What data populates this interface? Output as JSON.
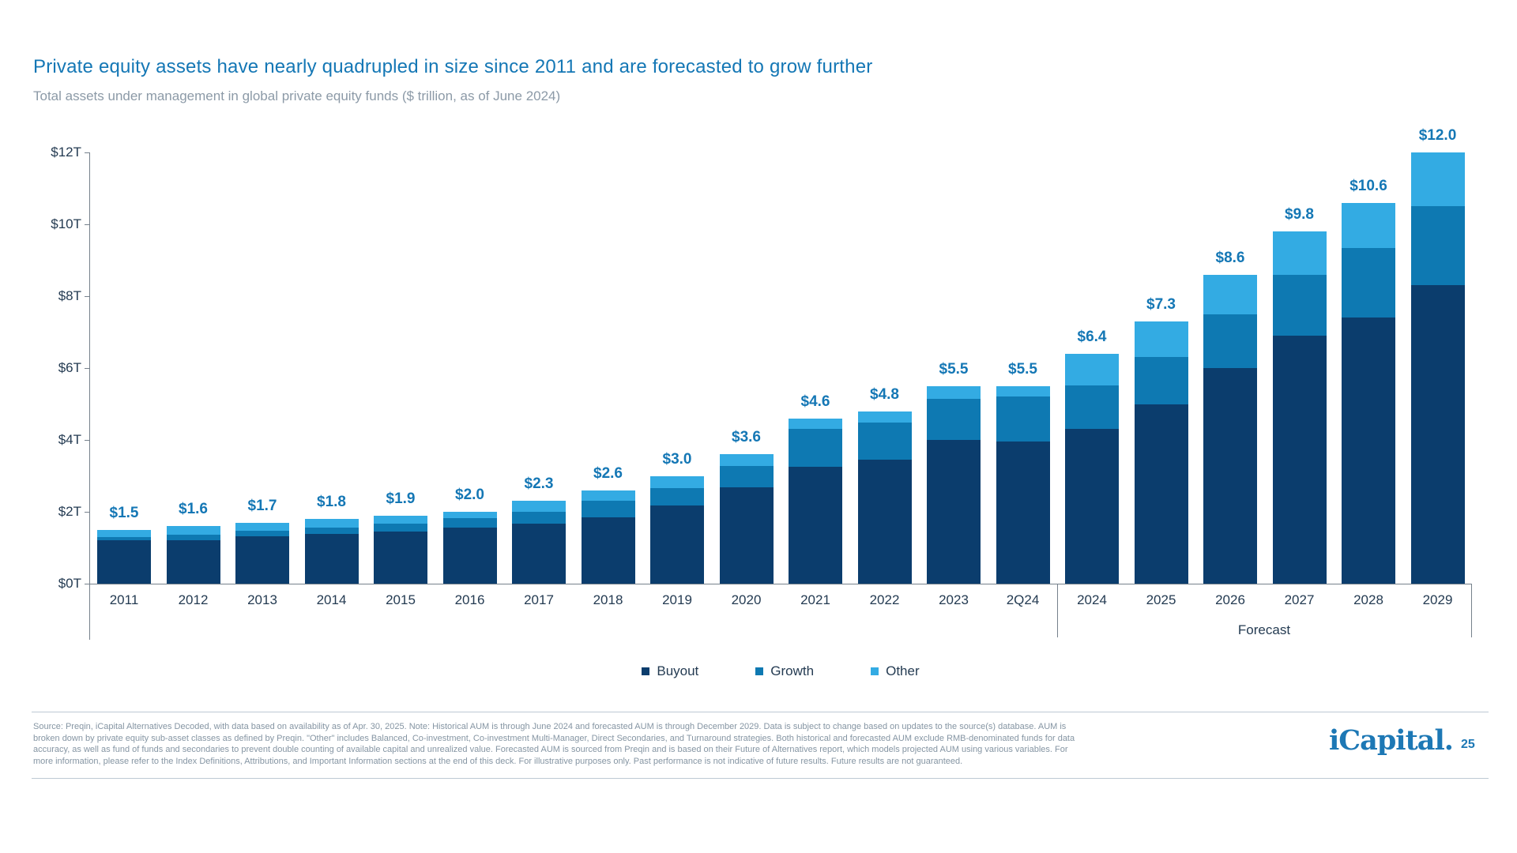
{
  "slide": {
    "title": "Private equity assets have nearly quadrupled in size since 2011 and are forecasted to grow further",
    "subtitle": "Total assets under management in global private equity funds ($ trillion, as of June 2024)",
    "footer": "Source: Preqin, iCapital Alternatives Decoded, with data based on availability as of Apr. 30, 2025. Note: Historical AUM is through June 2024 and forecasted AUM is through December 2029. Data is subject to change based on updates to the source(s) database. AUM is broken down by private equity sub-asset classes as defined by Preqin. \"Other\" includes Balanced, Co-investment, Co-investment Multi-Manager, Direct Secondaries, and Turnaround strategies. Both historical and forecasted AUM exclude RMB-denominated funds for data accuracy, as well as fund of funds and secondaries to prevent double counting of available capital and unrealized value. Forecasted AUM is sourced from Preqin and is based on their Future of Alternatives report, which models projected AUM using various variables. For more information, please refer to the Index Definitions, Attributions, and Important Information sections at the end of this deck. For illustrative purposes only. Past performance is not indicative of future results. Future results are not guaranteed.",
    "logo_text": "iCapital.",
    "page_number": "25"
  },
  "colors": {
    "accent_blue": "#1477b5",
    "navy_text": "#243b52",
    "subtitle_gray": "#8c9aa7",
    "axis_gray": "#76818c",
    "buyout": "#0b3d6d",
    "growth": "#0e79b2",
    "other": "#33abe3"
  },
  "chart_data": {
    "type": "bar",
    "stacked": true,
    "title": "Total assets under management in global private equity funds ($ trillion, as of June 2024)",
    "categories": [
      "2011",
      "2012",
      "2013",
      "2014",
      "2015",
      "2016",
      "2017",
      "2018",
      "2019",
      "2020",
      "2021",
      "2022",
      "2023",
      "2Q24",
      "2024",
      "2025",
      "2026",
      "2027",
      "2028",
      "2029"
    ],
    "series": [
      {
        "name": "Buyout",
        "color": "#0b3d6d",
        "values": [
          1.21,
          1.21,
          1.32,
          1.38,
          1.45,
          1.56,
          1.67,
          1.85,
          2.18,
          2.68,
          3.25,
          3.45,
          4.0,
          3.95,
          4.3,
          5.0,
          6.0,
          6.9,
          7.4,
          8.3
        ]
      },
      {
        "name": "Growth",
        "color": "#0e79b2",
        "values": [
          0.09,
          0.15,
          0.15,
          0.18,
          0.22,
          0.26,
          0.33,
          0.46,
          0.48,
          0.59,
          1.05,
          1.04,
          1.15,
          1.25,
          1.22,
          1.3,
          1.5,
          1.7,
          1.95,
          2.2
        ]
      },
      {
        "name": "Other",
        "color": "#33abe3",
        "values": [
          0.2,
          0.24,
          0.23,
          0.24,
          0.23,
          0.18,
          0.3,
          0.29,
          0.34,
          0.33,
          0.3,
          0.31,
          0.35,
          0.3,
          0.88,
          1.0,
          1.1,
          1.2,
          1.25,
          1.5
        ]
      }
    ],
    "totals": [
      1.5,
      1.6,
      1.7,
      1.8,
      1.9,
      2.0,
      2.3,
      2.6,
      3.0,
      3.6,
      4.6,
      4.8,
      5.5,
      5.5,
      6.4,
      7.3,
      8.6,
      9.8,
      10.6,
      12.0
    ],
    "totals_labels": [
      "$1.5",
      "$1.6",
      "$1.7",
      "$1.8",
      "$1.9",
      "$2.0",
      "$2.3",
      "$2.6",
      "$3.0",
      "$3.6",
      "$4.6",
      "$4.8",
      "$5.5",
      "$5.5",
      "$6.4",
      "$7.3",
      "$8.6",
      "$9.8",
      "$10.6",
      "$12.0"
    ],
    "ylabel_ticks": [
      "$0T",
      "$2T",
      "$4T",
      "$6T",
      "$8T",
      "$10T",
      "$12T"
    ],
    "ylim": [
      0,
      12
    ],
    "ytick_step": 2,
    "grid": false,
    "legend_position": "bottom",
    "forecast_label": "Forecast",
    "forecast_start_category": "2024"
  }
}
